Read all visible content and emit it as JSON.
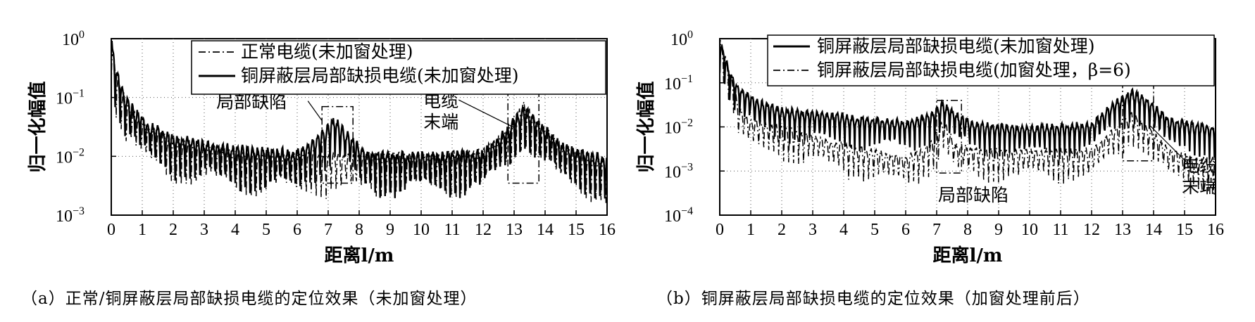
{
  "chart_data": [
    {
      "panel": "a",
      "type": "line",
      "caption": "（a）正常/铜屏蔽层局部缺损电缆的定位效果（未加窗处理）",
      "xlabel": "距离l/m",
      "ylabel": "归一化幅值",
      "xlim": [
        0,
        16
      ],
      "ylim": [
        0.001,
        1
      ],
      "yscale": "log",
      "grid": true,
      "x_ticks": [
        "0",
        "1",
        "2",
        "3",
        "4",
        "5",
        "6",
        "7",
        "8",
        "9",
        "10",
        "11",
        "12",
        "13",
        "14",
        "15",
        "16"
      ],
      "y_ticks": [
        {
          "base": "10",
          "exp": "0"
        },
        {
          "base": "10",
          "exp": "−1"
        },
        {
          "base": "10",
          "exp": "−2"
        },
        {
          "base": "10",
          "exp": "−3"
        }
      ],
      "legend_position": "top-right",
      "series": [
        {
          "name": "正常电缆(未加窗处理)",
          "style": "dashdot",
          "color": "#000000",
          "x": [
            0,
            0.15,
            0.3,
            0.5,
            0.8,
            1.2,
            2,
            4,
            6,
            8,
            10,
            12,
            12.8,
            13.3,
            13.8,
            14.5,
            16
          ],
          "y": [
            1,
            0.25,
            0.15,
            0.08,
            0.05,
            0.03,
            0.02,
            0.012,
            0.011,
            0.011,
            0.011,
            0.012,
            0.03,
            0.08,
            0.04,
            0.015,
            0.008
          ]
        },
        {
          "name": "铜屏蔽层局部缺损电缆(未加窗处理)",
          "style": "solid",
          "color": "#000000",
          "x": [
            0,
            0.15,
            0.3,
            0.5,
            0.8,
            1.2,
            2,
            4,
            6,
            6.8,
            7.2,
            7.6,
            8.2,
            10,
            12,
            12.8,
            13.3,
            13.8,
            14.5,
            16
          ],
          "y": [
            1,
            0.3,
            0.18,
            0.09,
            0.06,
            0.035,
            0.022,
            0.014,
            0.012,
            0.025,
            0.045,
            0.025,
            0.012,
            0.011,
            0.012,
            0.03,
            0.07,
            0.04,
            0.016,
            0.009
          ]
        }
      ],
      "annotations": [
        {
          "text": "局部缺陷",
          "box_x": [
            6.8,
            7.8
          ],
          "box_y": [
            0.0035,
            0.07
          ]
        },
        {
          "text_lines": [
            "电缆",
            "末端"
          ],
          "box_x": [
            12.8,
            13.8
          ],
          "box_y": [
            0.0035,
            0.12
          ]
        }
      ]
    },
    {
      "panel": "b",
      "type": "line",
      "caption": "（b）铜屏蔽层局部缺损电缆的定位效果（加窗处理前后）",
      "xlabel": "距离l/m",
      "ylabel": "归一化幅值",
      "xlim": [
        0,
        16
      ],
      "ylim": [
        0.0001,
        1
      ],
      "yscale": "log",
      "grid": true,
      "x_ticks": [
        "0",
        "1",
        "2",
        "3",
        "4",
        "5",
        "6",
        "7",
        "8",
        "9",
        "10",
        "11",
        "12",
        "13",
        "14",
        "15",
        "16"
      ],
      "y_ticks": [
        {
          "base": "10",
          "exp": "0"
        },
        {
          "base": "10",
          "exp": "−1"
        },
        {
          "base": "10",
          "exp": "−2"
        },
        {
          "base": "10",
          "exp": "−3"
        },
        {
          "base": "10",
          "exp": "−4"
        }
      ],
      "legend_position": "top-right",
      "series": [
        {
          "name": "铜屏蔽层局部缺损电缆(未加窗处理)",
          "style": "solid",
          "color": "#000000",
          "x": [
            0,
            0.15,
            0.3,
            0.5,
            0.8,
            1.2,
            2,
            4,
            6,
            6.8,
            7.2,
            7.6,
            8.2,
            10,
            12,
            12.8,
            13.3,
            13.8,
            14.5,
            16
          ],
          "y": [
            1,
            0.45,
            0.2,
            0.1,
            0.06,
            0.04,
            0.025,
            0.018,
            0.013,
            0.02,
            0.035,
            0.02,
            0.012,
            0.01,
            0.012,
            0.04,
            0.065,
            0.04,
            0.015,
            0.01
          ]
        },
        {
          "name": "铜屏蔽层局部缺损电缆(加窗处理，β=6)",
          "style": "dashdot",
          "color": "#000000",
          "x": [
            0,
            0.2,
            0.4,
            0.6,
            0.9,
            1.5,
            2.5,
            4,
            6,
            6.8,
            7.2,
            7.6,
            8.5,
            10,
            12,
            12.8,
            13.3,
            13.8,
            14.5,
            16
          ],
          "y": [
            1,
            0.35,
            0.12,
            0.03,
            0.015,
            0.012,
            0.008,
            0.004,
            0.002,
            0.004,
            0.015,
            0.004,
            0.003,
            0.003,
            0.003,
            0.01,
            0.02,
            0.01,
            0.003,
            0.0015
          ]
        }
      ],
      "annotations": [
        {
          "text": "局部缺陷",
          "box_x": [
            7.0,
            7.8
          ],
          "box_y": [
            0.0009,
            0.04
          ]
        },
        {
          "text_lines": [
            "电缆",
            "末端"
          ],
          "box_x": [
            13.0,
            14.0
          ],
          "box_y": [
            0.0017,
            0.09
          ]
        }
      ]
    }
  ]
}
